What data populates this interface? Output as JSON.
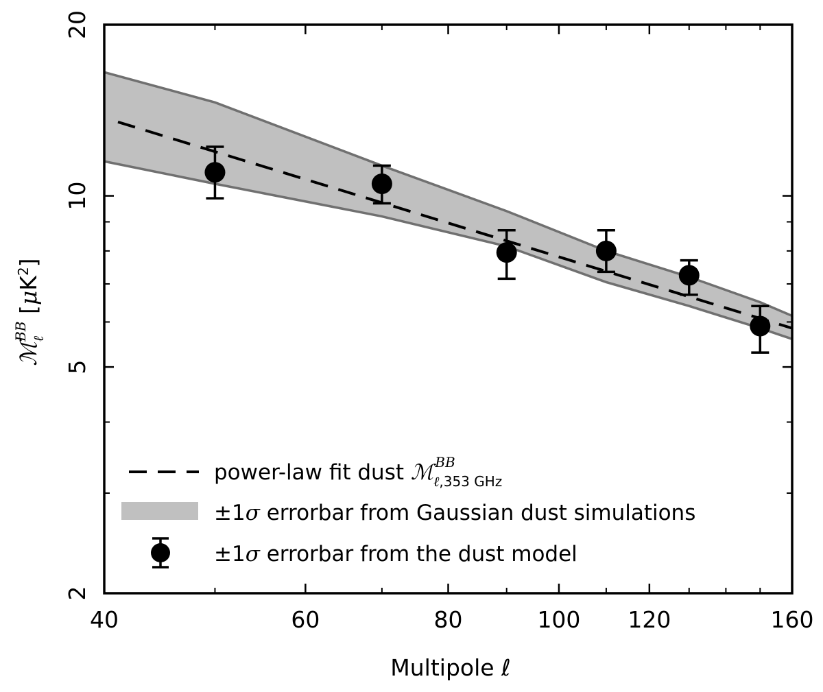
{
  "chart_data": {
    "type": "scatter",
    "xlabel": "Multipole ℓ",
    "ylabel": "ℳℓBB [μK²]",
    "xscale": "log",
    "yscale": "log",
    "xlim": [
      40,
      160
    ],
    "ylim": [
      2,
      20
    ],
    "x_ticks": [
      40,
      60,
      80,
      100,
      120,
      160
    ],
    "y_ticks": [
      2,
      5,
      10,
      20
    ],
    "legend_position": "bottom-left",
    "legend": [
      {
        "kind": "dashed-line",
        "text": "power-law fit dust ℳℓ,353 GHzBB"
      },
      {
        "kind": "band",
        "text": "±1σ errorbar from Gaussian dust simulations"
      },
      {
        "kind": "errorbar-point",
        "text": "±1σ errorbar from the dust model"
      }
    ],
    "band": {
      "color": "#c0c0c0",
      "edge_color": "#707070",
      "x": [
        40,
        50,
        70,
        90,
        110,
        130,
        150,
        160
      ],
      "upper": [
        16.5,
        14.6,
        11.3,
        9.4,
        8.0,
        7.2,
        6.5,
        6.15
      ],
      "lower": [
        11.5,
        10.5,
        9.2,
        8.15,
        7.05,
        6.4,
        5.85,
        5.6
      ]
    },
    "fit": {
      "color": "#000000",
      "x": [
        40,
        160
      ],
      "y": [
        13.6,
        5.85
      ]
    },
    "points": {
      "color": "#000000",
      "x": [
        50,
        70,
        90,
        110,
        130,
        150
      ],
      "y": [
        11.0,
        10.5,
        7.95,
        8.0,
        7.25,
        5.9
      ],
      "err_low": [
        1.1,
        0.8,
        0.8,
        0.65,
        0.55,
        0.6
      ],
      "err_high": [
        1.2,
        0.8,
        0.75,
        0.7,
        0.45,
        0.5
      ]
    }
  }
}
